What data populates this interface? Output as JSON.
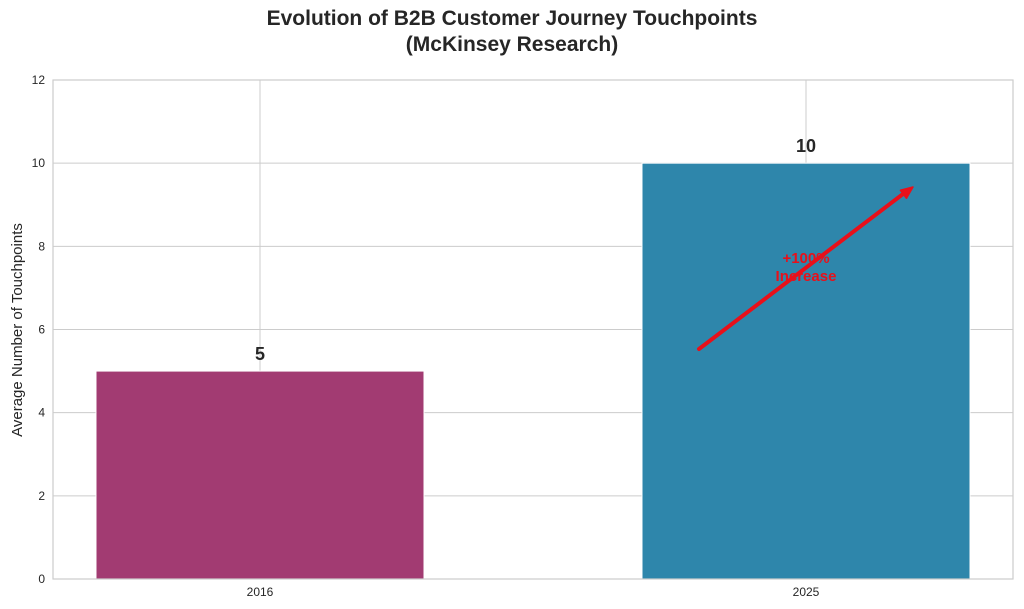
{
  "chart_data": {
    "type": "bar",
    "title_line1": "Evolution of B2B Customer Journey Touchpoints",
    "title_line2": "(McKinsey Research)",
    "xlabel": "",
    "ylabel": "Average Number of Touchpoints",
    "categories": [
      "2016",
      "2025"
    ],
    "values": [
      5,
      10
    ],
    "data_labels": [
      "5",
      "10"
    ],
    "bar_colors": [
      "#a23b72",
      "#2e86ab"
    ],
    "ylim": [
      0,
      12
    ],
    "yticks": [
      0,
      2,
      4,
      6,
      8,
      10,
      12
    ],
    "ytick_labels": [
      "0",
      "2",
      "4",
      "6",
      "8",
      "10",
      "12"
    ],
    "grid": true,
    "annotation": {
      "line1": "+100%",
      "line2": "Increase",
      "color": "#e8101a",
      "arrow_from": {
        "x_category": 1,
        "x_offset": -0.27,
        "y": 5.5
      },
      "arrow_to": {
        "x_category": 1,
        "x_offset": 0.27,
        "y": 9.5
      },
      "text_at": {
        "x_category": 1,
        "y": 7.5
      }
    }
  }
}
